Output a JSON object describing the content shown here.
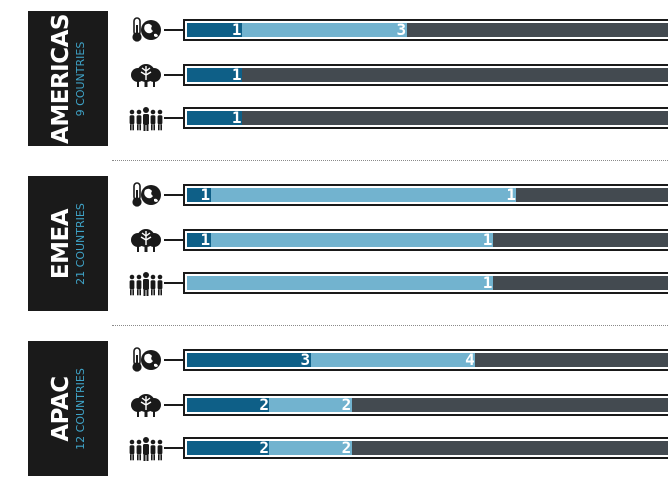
{
  "colors": {
    "segment_1": "#0e5f87",
    "segment_2": "#72b3cf",
    "segment_3": "#434a50",
    "region_bg": "#1a1a1a",
    "region_count": "#3fa3c7"
  },
  "chart_data": {
    "type": "bar",
    "stacked": true,
    "orientation": "horizontal",
    "title": "",
    "xlabel": "",
    "ylabel": "",
    "legend": "none",
    "icons": [
      "thermometer-globe-icon",
      "trees-icon",
      "people-icon"
    ],
    "regions": [
      {
        "name": "AMERICAS",
        "countries": "9 COUNTRIES",
        "rows": [
          {
            "icon": "thermometer-globe-icon",
            "segments": [
              1,
              3,
              5
            ]
          },
          {
            "icon": "trees-icon",
            "segments": [
              1,
              0,
              8
            ]
          },
          {
            "icon": "people-icon",
            "segments": [
              1,
              0,
              8
            ]
          }
        ]
      },
      {
        "name": "EMEA",
        "countries": "21 COUNTRIES",
        "rows": [
          {
            "icon": "thermometer-globe-icon",
            "segments": [
              1,
              13,
              7
            ]
          },
          {
            "icon": "trees-icon",
            "segments": [
              1,
              12,
              8
            ]
          },
          {
            "icon": "people-icon",
            "segments": [
              0,
              13,
              8
            ]
          }
        ]
      },
      {
        "name": "APAC",
        "countries": "12 COUNTRIES",
        "rows": [
          {
            "icon": "thermometer-globe-icon",
            "segments": [
              3,
              4,
              5
            ]
          },
          {
            "icon": "trees-icon",
            "segments": [
              2,
              2,
              8
            ]
          },
          {
            "icon": "people-icon",
            "segments": [
              2,
              2,
              8
            ]
          }
        ]
      }
    ]
  }
}
